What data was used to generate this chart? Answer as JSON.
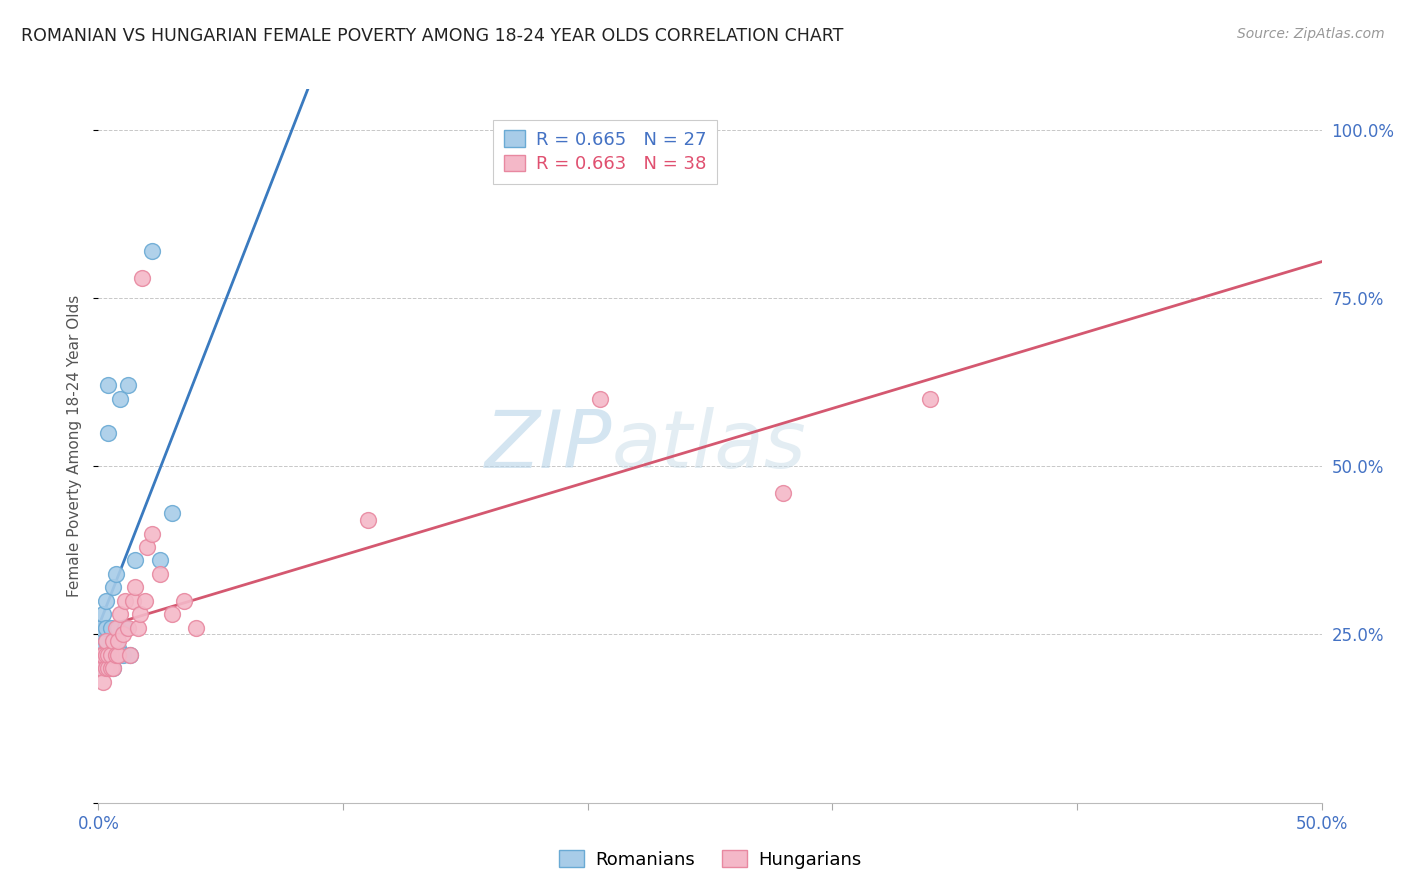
{
  "title": "ROMANIAN VS HUNGARIAN FEMALE POVERTY AMONG 18-24 YEAR OLDS CORRELATION CHART",
  "source": "Source: ZipAtlas.com",
  "ylabel": "Female Poverty Among 18-24 Year Olds",
  "xlim": [
    0.0,
    0.5
  ],
  "ylim": [
    0.0,
    1.06
  ],
  "xticks": [
    0.0,
    0.1,
    0.2,
    0.3,
    0.4,
    0.5
  ],
  "xtick_labels": [
    "0.0%",
    "",
    "",
    "",
    "",
    "50.0%"
  ],
  "yticks": [
    0.0,
    0.25,
    0.5,
    0.75,
    1.0
  ],
  "ytick_labels": [
    "",
    "25.0%",
    "50.0%",
    "75.0%",
    "100.0%"
  ],
  "romanian_color": "#a8cce8",
  "hungarian_color": "#f4b8c8",
  "romanian_edge": "#6aaad4",
  "hungarian_edge": "#e888a0",
  "bg_color": "#ffffff",
  "grid_color": "#c8c8c8",
  "legend_R_romanian": "0.665",
  "legend_N_romanian": "27",
  "legend_R_hungarian": "0.663",
  "legend_N_hungarian": "38",
  "legend_blue": "#4472c4",
  "legend_pink": "#e05070",
  "trendline_romanian_color": "#3a7abf",
  "trendline_hungarian_color": "#d45870",
  "watermark_color": "#cce0f0",
  "romanians_x": [
    0.001,
    0.001,
    0.001,
    0.002,
    0.002,
    0.002,
    0.003,
    0.003,
    0.003,
    0.004,
    0.004,
    0.005,
    0.005,
    0.006,
    0.006,
    0.007,
    0.008,
    0.008,
    0.009,
    0.01,
    0.011,
    0.012,
    0.013,
    0.015,
    0.022,
    0.025,
    0.03
  ],
  "romanians_y": [
    0.21,
    0.24,
    0.26,
    0.2,
    0.22,
    0.28,
    0.24,
    0.26,
    0.3,
    0.55,
    0.62,
    0.22,
    0.26,
    0.2,
    0.32,
    0.34,
    0.23,
    0.26,
    0.6,
    0.22,
    0.26,
    0.62,
    0.22,
    0.36,
    0.82,
    0.36,
    0.43
  ],
  "hungarians_x": [
    0.001,
    0.001,
    0.002,
    0.002,
    0.003,
    0.003,
    0.003,
    0.004,
    0.004,
    0.005,
    0.005,
    0.006,
    0.006,
    0.007,
    0.007,
    0.008,
    0.008,
    0.009,
    0.01,
    0.011,
    0.012,
    0.013,
    0.014,
    0.015,
    0.016,
    0.017,
    0.018,
    0.019,
    0.02,
    0.022,
    0.025,
    0.03,
    0.035,
    0.04,
    0.11,
    0.205,
    0.28,
    0.34
  ],
  "hungarians_y": [
    0.2,
    0.22,
    0.18,
    0.22,
    0.2,
    0.22,
    0.24,
    0.2,
    0.22,
    0.2,
    0.22,
    0.2,
    0.24,
    0.22,
    0.26,
    0.22,
    0.24,
    0.28,
    0.25,
    0.3,
    0.26,
    0.22,
    0.3,
    0.32,
    0.26,
    0.28,
    0.78,
    0.3,
    0.38,
    0.4,
    0.34,
    0.28,
    0.3,
    0.26,
    0.42,
    0.6,
    0.46,
    0.6
  ]
}
